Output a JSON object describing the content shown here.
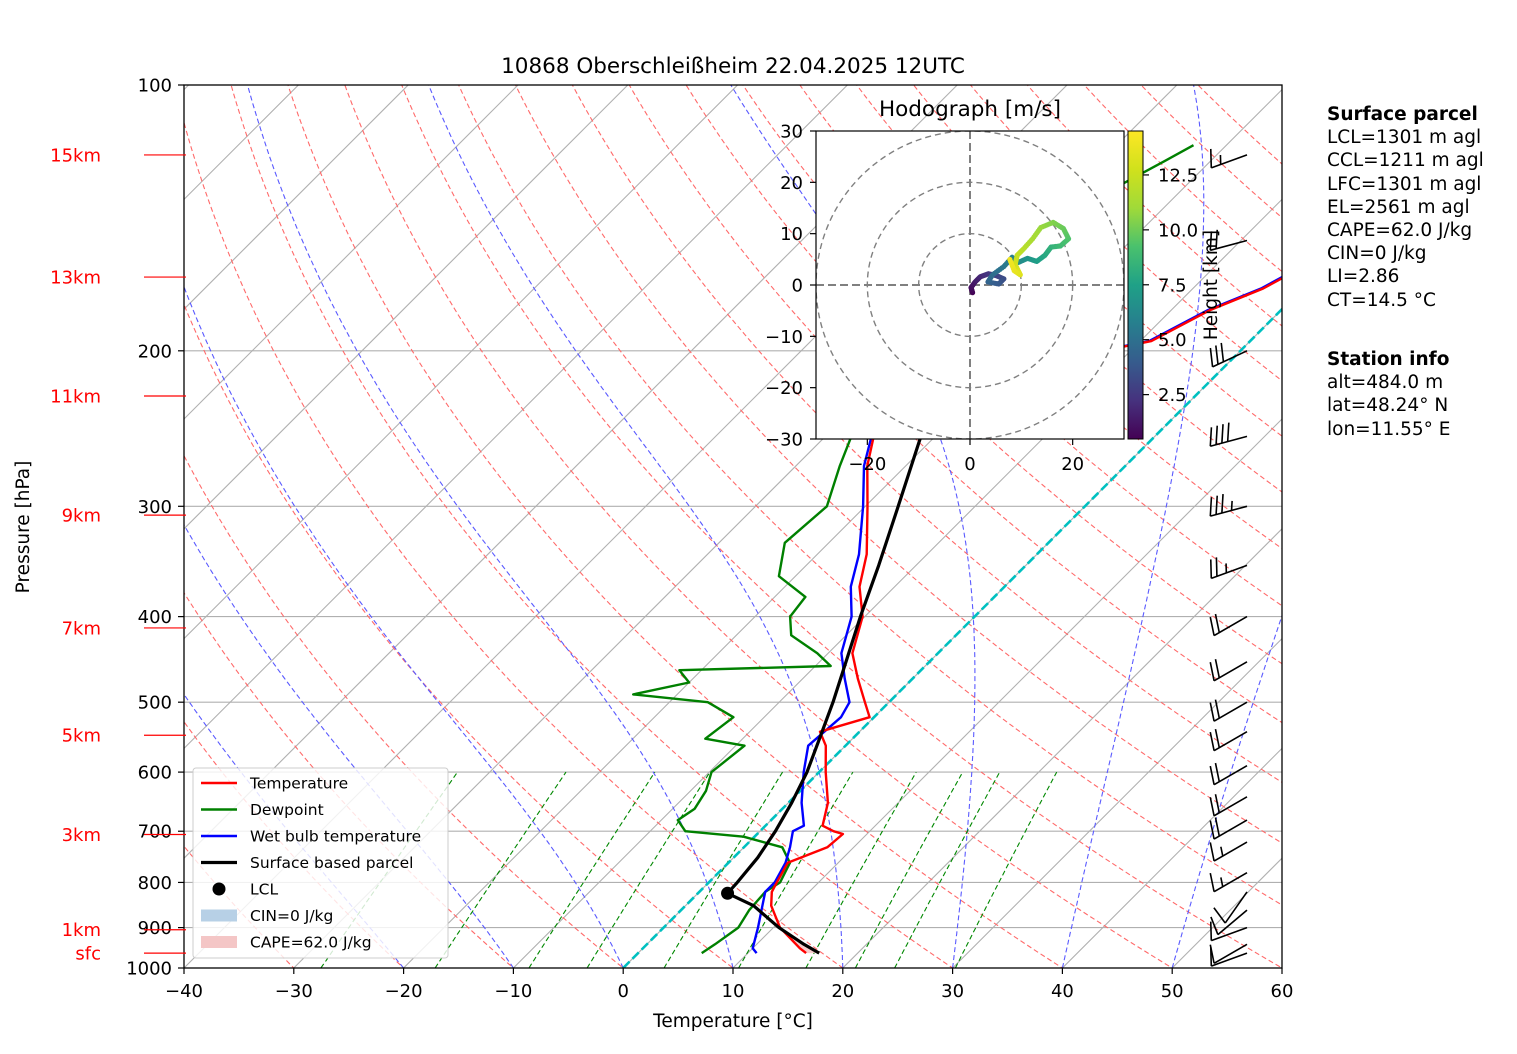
{
  "chart_data": [
    {
      "type": "line",
      "subtype": "skew-T log-p diagram",
      "title": "10868 Oberschleißheim 22.04.2025 12UTC",
      "xlabel": "Temperature [°C]",
      "ylabel": "Pressure [hPa]",
      "xlim": [
        -40,
        60
      ],
      "ylim": [
        1000,
        100
      ],
      "y_scale": "log",
      "x_ticks": [
        "−40",
        "−30",
        "−20",
        "−10",
        "0",
        "10",
        "20",
        "30",
        "40",
        "50",
        "60"
      ],
      "y_ticks": [
        "1000",
        "900",
        "800",
        "700",
        "600",
        "500",
        "400",
        "300",
        "200",
        "100"
      ],
      "height_labels": [
        {
          "label": "sfc",
          "p": 962
        },
        {
          "label": "1km",
          "p": 905
        },
        {
          "label": "3km",
          "p": 706
        },
        {
          "label": "5km",
          "p": 545
        },
        {
          "label": "7km",
          "p": 412
        },
        {
          "label": "9km",
          "p": 307
        },
        {
          "label": "11km",
          "p": 225
        },
        {
          "label": "13km",
          "p": 165
        },
        {
          "label": "15km",
          "p": 120
        }
      ],
      "grid": true,
      "legend_position": "lower-left",
      "series": [
        {
          "name": "Temperature",
          "color": "#ff0000",
          "points": [
            [
              962,
              15.3
            ],
            [
              950,
              14.3
            ],
            [
              900,
              10.6
            ],
            [
              850,
              7.8
            ],
            [
              820,
              6.6
            ],
            [
              800,
              6.2
            ],
            [
              760,
              5.4
            ],
            [
              730,
              7.6
            ],
            [
              705,
              7.8
            ],
            [
              700,
              6.7
            ],
            [
              690,
              5.2
            ],
            [
              650,
              3.6
            ],
            [
              600,
              0.6
            ],
            [
              560,
              -1.8
            ],
            [
              540,
              -3.6
            ],
            [
              520,
              -0.4
            ],
            [
              500,
              -2.2
            ],
            [
              470,
              -5.0
            ],
            [
              440,
              -7.8
            ],
            [
              400,
              -10.2
            ],
            [
              370,
              -13.2
            ],
            [
              340,
              -15.5
            ],
            [
              300,
              -19.8
            ],
            [
              270,
              -23.5
            ],
            [
              250,
              -25.6
            ],
            [
              240,
              -26.4
            ],
            [
              230,
              -26.2
            ],
            [
              220,
              -26.0
            ],
            [
              212,
              -22.4
            ],
            [
              205,
              -16.0
            ],
            [
              195,
              -9.0
            ],
            [
              180,
              -6.5
            ],
            [
              170,
              -3.6
            ],
            [
              160,
              -1.8
            ],
            [
              150,
              2.0
            ],
            [
              140,
              4.5
            ],
            [
              130,
              8.5
            ],
            [
              120,
              10.5
            ],
            [
              118,
              11.2
            ]
          ]
        },
        {
          "name": "Dewpoint",
          "color": "#008000",
          "points": [
            [
              962,
              5.8
            ],
            [
              940,
              6.2
            ],
            [
              900,
              6.8
            ],
            [
              860,
              6.2
            ],
            [
              820,
              6.0
            ],
            [
              800,
              6.5
            ],
            [
              760,
              5.6
            ],
            [
              730,
              3.5
            ],
            [
              710,
              -1.0
            ],
            [
              700,
              -6.8
            ],
            [
              680,
              -8.5
            ],
            [
              660,
              -8.0
            ],
            [
              630,
              -8.6
            ],
            [
              600,
              -9.8
            ],
            [
              560,
              -9.2
            ],
            [
              550,
              -13.4
            ],
            [
              520,
              -12.8
            ],
            [
              500,
              -16.5
            ],
            [
              490,
              -24.0
            ],
            [
              475,
              -20.0
            ],
            [
              460,
              -22.0
            ],
            [
              455,
              -8.6
            ],
            [
              440,
              -11.0
            ],
            [
              420,
              -15.0
            ],
            [
              400,
              -16.8
            ],
            [
              380,
              -17.2
            ],
            [
              360,
              -21.5
            ],
            [
              330,
              -24.0
            ],
            [
              300,
              -23.5
            ],
            [
              270,
              -26.0
            ],
            [
              240,
              -28.5
            ],
            [
              220,
              -30.5
            ],
            [
              205,
              -33.5
            ],
            [
              195,
              -32.0
            ],
            [
              180,
              -31.0
            ],
            [
              165,
              -32.0
            ],
            [
              150,
              -29.8
            ],
            [
              135,
              -27.2
            ],
            [
              122,
              -24.2
            ],
            [
              117,
              -23.0
            ]
          ]
        },
        {
          "name": "Wet bulb temperature",
          "color": "#0000ff",
          "points": [
            [
              962,
              10.8
            ],
            [
              950,
              10.0
            ],
            [
              900,
              8.6
            ],
            [
              850,
              7.0
            ],
            [
              820,
              6.0
            ],
            [
              800,
              6.0
            ],
            [
              760,
              5.2
            ],
            [
              730,
              4.2
            ],
            [
              700,
              3.0
            ],
            [
              690,
              3.5
            ],
            [
              650,
              1.2
            ],
            [
              600,
              -1.4
            ],
            [
              560,
              -3.4
            ],
            [
              520,
              -3.0
            ],
            [
              500,
              -3.6
            ],
            [
              470,
              -6.2
            ],
            [
              440,
              -8.8
            ],
            [
              400,
              -11.2
            ],
            [
              370,
              -14.0
            ],
            [
              340,
              -16.2
            ],
            [
              300,
              -20.2
            ],
            [
              270,
              -23.8
            ],
            [
              250,
              -25.8
            ],
            [
              240,
              -26.6
            ],
            [
              230,
              -26.4
            ],
            [
              220,
              -26.2
            ],
            [
              212,
              -22.6
            ],
            [
              205,
              -16.2
            ],
            [
              195,
              -9.2
            ],
            [
              180,
              -6.7
            ],
            [
              170,
              -3.8
            ],
            [
              160,
              -2.0
            ],
            [
              150,
              1.8
            ],
            [
              140,
              4.2
            ],
            [
              130,
              8.0
            ],
            [
              120,
              10.0
            ],
            [
              117,
              10.2
            ]
          ]
        },
        {
          "name": "Surface based parcel",
          "color": "#000000",
          "points": [
            [
              962,
              16.5
            ],
            [
              940,
              14.3
            ],
            [
              900,
              10.5
            ],
            [
              850,
              6.2
            ],
            [
              823,
              2.7
            ],
            [
              800,
              2.6
            ],
            [
              750,
              2.2
            ],
            [
              700,
              1.4
            ],
            [
              650,
              0.3
            ],
            [
              600,
              -1.1
            ],
            [
              550,
              -3.0
            ],
            [
              500,
              -5.1
            ],
            [
              450,
              -7.6
            ],
            [
              400,
              -10.4
            ],
            [
              350,
              -13.4
            ],
            [
              300,
              -17.0
            ],
            [
              250,
              -21.3
            ],
            [
              200,
              -26.3
            ],
            [
              150,
              -32.2
            ],
            [
              130,
              -34.7
            ]
          ]
        }
      ],
      "lcl": {
        "p": 823,
        "t": 2.7
      },
      "legend": [
        {
          "label": "Temperature",
          "kind": "line",
          "color": "#ff0000"
        },
        {
          "label": "Dewpoint",
          "kind": "line",
          "color": "#008000"
        },
        {
          "label": "Wet bulb temperature",
          "kind": "line",
          "color": "#0000ff"
        },
        {
          "label": "Surface based parcel",
          "kind": "line",
          "color": "#000000"
        },
        {
          "label": "LCL",
          "kind": "dot",
          "color": "#000000"
        },
        {
          "label": "CIN=0 J/kg",
          "kind": "patch",
          "color": "#b7d0e6"
        },
        {
          "label": "CAPE=62.0 J/kg",
          "kind": "patch",
          "color": "#f4c6c6"
        }
      ],
      "wind_barbs": [
        {
          "p": 962,
          "dir": 250,
          "speed_kt": 10
        },
        {
          "p": 940,
          "dir": 240,
          "speed_kt": 10
        },
        {
          "p": 900,
          "dir": 250,
          "speed_kt": 10
        },
        {
          "p": 860,
          "dir": 230,
          "speed_kt": 10
        },
        {
          "p": 820,
          "dir": 215,
          "speed_kt": 10
        },
        {
          "p": 780,
          "dir": 240,
          "speed_kt": 15
        },
        {
          "p": 720,
          "dir": 240,
          "speed_kt": 15
        },
        {
          "p": 680,
          "dir": 240,
          "speed_kt": 20
        },
        {
          "p": 640,
          "dir": 240,
          "speed_kt": 20
        },
        {
          "p": 590,
          "dir": 240,
          "speed_kt": 20
        },
        {
          "p": 540,
          "dir": 240,
          "speed_kt": 20
        },
        {
          "p": 500,
          "dir": 240,
          "speed_kt": 20
        },
        {
          "p": 450,
          "dir": 240,
          "speed_kt": 20
        },
        {
          "p": 400,
          "dir": 240,
          "speed_kt": 20
        },
        {
          "p": 350,
          "dir": 250,
          "speed_kt": 25
        },
        {
          "p": 300,
          "dir": 255,
          "speed_kt": 35
        },
        {
          "p": 250,
          "dir": 255,
          "speed_kt": 40
        },
        {
          "p": 200,
          "dir": 245,
          "speed_kt": 30
        },
        {
          "p": 150,
          "dir": 255,
          "speed_kt": 20
        },
        {
          "p": 120,
          "dir": 250,
          "speed_kt": 15
        }
      ]
    },
    {
      "type": "scatter",
      "subtype": "hodograph",
      "title": "Hodograph [m/s]",
      "xlim": [
        -30,
        30
      ],
      "ylim": [
        -30,
        30
      ],
      "x_ticks": [
        "−20",
        "0",
        "20"
      ],
      "y_ticks": [
        "30",
        "20",
        "10",
        "0",
        "−10",
        "−20",
        "−30"
      ],
      "rings": [
        10,
        20,
        30
      ],
      "colorbar": {
        "label": "Height [km]",
        "ticks": [
          "2.5",
          "5.0",
          "7.5",
          "10.0",
          "12.5"
        ],
        "range": [
          0.48,
          14.5
        ],
        "colormap": "viridis"
      },
      "points": [
        [
          0.5,
          -1.5,
          0.5
        ],
        [
          0.2,
          -0.5,
          0.9
        ],
        [
          1.0,
          0.6,
          1.3
        ],
        [
          2.0,
          1.6,
          1.8
        ],
        [
          3.6,
          2.2,
          2.3
        ],
        [
          5.2,
          1.8,
          2.8
        ],
        [
          6.6,
          1.2,
          3.3
        ],
        [
          5.6,
          0.2,
          3.8
        ],
        [
          3.5,
          0.6,
          4.3
        ],
        [
          4.4,
          2.0,
          4.8
        ],
        [
          6.6,
          3.6,
          5.3
        ],
        [
          8.2,
          5.4,
          5.8
        ],
        [
          9.4,
          4.4,
          6.3
        ],
        [
          11.2,
          5.2,
          6.8
        ],
        [
          13.0,
          4.6,
          7.3
        ],
        [
          14.6,
          5.8,
          7.8
        ],
        [
          15.8,
          7.4,
          8.3
        ],
        [
          17.6,
          7.6,
          8.8
        ],
        [
          19.2,
          9.0,
          9.3
        ],
        [
          18.2,
          11.0,
          9.8
        ],
        [
          16.2,
          12.2,
          10.3
        ],
        [
          13.8,
          11.2,
          10.8
        ],
        [
          12.2,
          9.0,
          11.3
        ],
        [
          10.4,
          7.0,
          11.8
        ],
        [
          9.2,
          5.8,
          12.3
        ],
        [
          8.8,
          4.0,
          12.8
        ],
        [
          9.8,
          2.0,
          13.3
        ],
        [
          8.6,
          2.8,
          13.7
        ],
        [
          7.6,
          5.4,
          14.1
        ]
      ]
    }
  ],
  "surface_parcel": {
    "title": "Surface parcel",
    "lines": [
      "LCL=1301 m agl",
      "CCL=1211 m agl",
      "LFC=1301 m agl",
      "EL=2561 m agl",
      "CAPE=62.0 J/kg",
      "CIN=0 J/kg",
      "LI=2.86",
      "CT=14.5 °C"
    ]
  },
  "station_info": {
    "title": "Station info",
    "lines": [
      "alt=484.0 m",
      "lat=48.24° N",
      "lon=11.55° E"
    ]
  },
  "colors": {
    "isotherm": "#b0b0b0",
    "dry_adiabat": "#ff6a6a",
    "moist_adiabat": "#5a5aff",
    "mixing_ratio": "#008800",
    "zero_isotherm": "#00c0c0",
    "height_labels": "#ff0000"
  }
}
